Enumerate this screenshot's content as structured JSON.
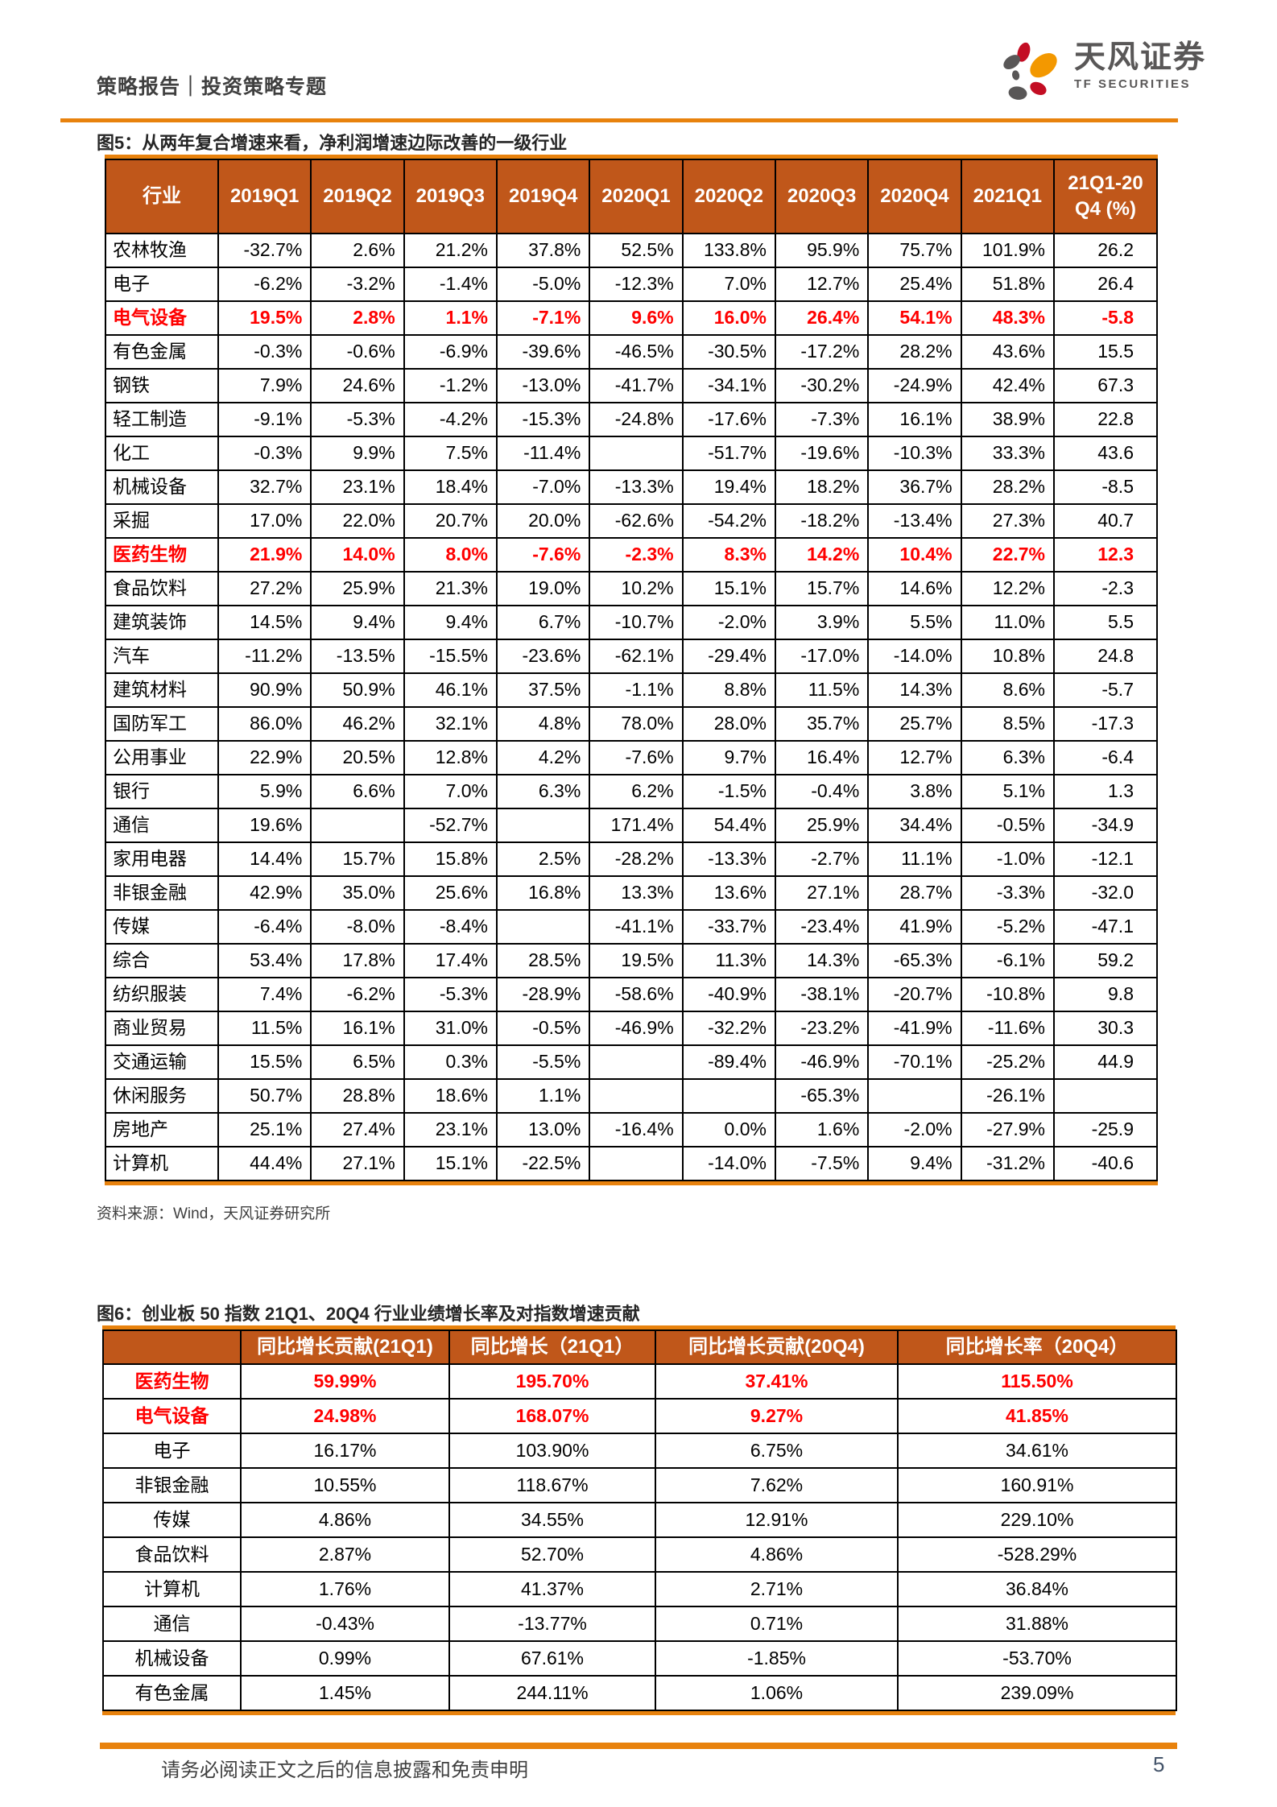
{
  "header": {
    "breadcrumb": "策略报告｜投资策略专题",
    "logo_cn": "天风证券",
    "logo_en": "TF SECURITIES"
  },
  "figure5": {
    "title": "图5：从两年复合增速来看，净利润增速边际改善的一级行业",
    "source": "资料来源：Wind，天风证券研究所",
    "table": {
      "columns": [
        "行业",
        "2019Q1",
        "2019Q2",
        "2019Q3",
        "2019Q4",
        "2020Q1",
        "2020Q2",
        "2020Q3",
        "2020Q4",
        "2021Q1",
        "21Q1-20Q4 (%)"
      ],
      "rows": [
        {
          "industry": "农林牧渔",
          "highlight": false,
          "values": [
            "-32.7%",
            "2.6%",
            "21.2%",
            "37.8%",
            "52.5%",
            "133.8%",
            "95.9%",
            "75.7%",
            "101.9%",
            "26.2"
          ]
        },
        {
          "industry": "电子",
          "highlight": false,
          "values": [
            "-6.2%",
            "-3.2%",
            "-1.4%",
            "-5.0%",
            "-12.3%",
            "7.0%",
            "12.7%",
            "25.4%",
            "51.8%",
            "26.4"
          ]
        },
        {
          "industry": "电气设备",
          "highlight": true,
          "values": [
            "19.5%",
            "2.8%",
            "1.1%",
            "-7.1%",
            "9.6%",
            "16.0%",
            "26.4%",
            "54.1%",
            "48.3%",
            "-5.8"
          ]
        },
        {
          "industry": "有色金属",
          "highlight": false,
          "values": [
            "-0.3%",
            "-0.6%",
            "-6.9%",
            "-39.6%",
            "-46.5%",
            "-30.5%",
            "-17.2%",
            "28.2%",
            "43.6%",
            "15.5"
          ]
        },
        {
          "industry": "钢铁",
          "highlight": false,
          "values": [
            "7.9%",
            "24.6%",
            "-1.2%",
            "-13.0%",
            "-41.7%",
            "-34.1%",
            "-30.2%",
            "-24.9%",
            "42.4%",
            "67.3"
          ]
        },
        {
          "industry": "轻工制造",
          "highlight": false,
          "values": [
            "-9.1%",
            "-5.3%",
            "-4.2%",
            "-15.3%",
            "-24.8%",
            "-17.6%",
            "-7.3%",
            "16.1%",
            "38.9%",
            "22.8"
          ]
        },
        {
          "industry": "化工",
          "highlight": false,
          "values": [
            "-0.3%",
            "9.9%",
            "7.5%",
            "-11.4%",
            "",
            "-51.7%",
            "-19.6%",
            "-10.3%",
            "33.3%",
            "43.6"
          ]
        },
        {
          "industry": "机械设备",
          "highlight": false,
          "values": [
            "32.7%",
            "23.1%",
            "18.4%",
            "-7.0%",
            "-13.3%",
            "19.4%",
            "18.2%",
            "36.7%",
            "28.2%",
            "-8.5"
          ]
        },
        {
          "industry": "采掘",
          "highlight": false,
          "values": [
            "17.0%",
            "22.0%",
            "20.7%",
            "20.0%",
            "-62.6%",
            "-54.2%",
            "-18.2%",
            "-13.4%",
            "27.3%",
            "40.7"
          ]
        },
        {
          "industry": "医药生物",
          "highlight": true,
          "values": [
            "21.9%",
            "14.0%",
            "8.0%",
            "-7.6%",
            "-2.3%",
            "8.3%",
            "14.2%",
            "10.4%",
            "22.7%",
            "12.3"
          ]
        },
        {
          "industry": "食品饮料",
          "highlight": false,
          "values": [
            "27.2%",
            "25.9%",
            "21.3%",
            "19.0%",
            "10.2%",
            "15.1%",
            "15.7%",
            "14.6%",
            "12.2%",
            "-2.3"
          ]
        },
        {
          "industry": "建筑装饰",
          "highlight": false,
          "values": [
            "14.5%",
            "9.4%",
            "9.4%",
            "6.7%",
            "-10.7%",
            "-2.0%",
            "3.9%",
            "5.5%",
            "11.0%",
            "5.5"
          ]
        },
        {
          "industry": "汽车",
          "highlight": false,
          "values": [
            "-11.2%",
            "-13.5%",
            "-15.5%",
            "-23.6%",
            "-62.1%",
            "-29.4%",
            "-17.0%",
            "-14.0%",
            "10.8%",
            "24.8"
          ]
        },
        {
          "industry": "建筑材料",
          "highlight": false,
          "values": [
            "90.9%",
            "50.9%",
            "46.1%",
            "37.5%",
            "-1.1%",
            "8.8%",
            "11.5%",
            "14.3%",
            "8.6%",
            "-5.7"
          ]
        },
        {
          "industry": "国防军工",
          "highlight": false,
          "values": [
            "86.0%",
            "46.2%",
            "32.1%",
            "4.8%",
            "78.0%",
            "28.0%",
            "35.7%",
            "25.7%",
            "8.5%",
            "-17.3"
          ]
        },
        {
          "industry": "公用事业",
          "highlight": false,
          "values": [
            "22.9%",
            "20.5%",
            "12.8%",
            "4.2%",
            "-7.6%",
            "9.7%",
            "16.4%",
            "12.7%",
            "6.3%",
            "-6.4"
          ]
        },
        {
          "industry": "银行",
          "highlight": false,
          "values": [
            "5.9%",
            "6.6%",
            "7.0%",
            "6.3%",
            "6.2%",
            "-1.5%",
            "-0.4%",
            "3.8%",
            "5.1%",
            "1.3"
          ]
        },
        {
          "industry": "通信",
          "highlight": false,
          "values": [
            "19.6%",
            "",
            "-52.7%",
            "",
            "171.4%",
            "54.4%",
            "25.9%",
            "34.4%",
            "-0.5%",
            "-34.9"
          ]
        },
        {
          "industry": "家用电器",
          "highlight": false,
          "values": [
            "14.4%",
            "15.7%",
            "15.8%",
            "2.5%",
            "-28.2%",
            "-13.3%",
            "-2.7%",
            "11.1%",
            "-1.0%",
            "-12.1"
          ]
        },
        {
          "industry": "非银金融",
          "highlight": false,
          "values": [
            "42.9%",
            "35.0%",
            "25.6%",
            "16.8%",
            "13.3%",
            "13.6%",
            "27.1%",
            "28.7%",
            "-3.3%",
            "-32.0"
          ]
        },
        {
          "industry": "传媒",
          "highlight": false,
          "values": [
            "-6.4%",
            "-8.0%",
            "-8.4%",
            "",
            "-41.1%",
            "-33.7%",
            "-23.4%",
            "41.9%",
            "-5.2%",
            "-47.1"
          ]
        },
        {
          "industry": "综合",
          "highlight": false,
          "values": [
            "53.4%",
            "17.8%",
            "17.4%",
            "28.5%",
            "19.5%",
            "11.3%",
            "14.3%",
            "-65.3%",
            "-6.1%",
            "59.2"
          ]
        },
        {
          "industry": "纺织服装",
          "highlight": false,
          "values": [
            "7.4%",
            "-6.2%",
            "-5.3%",
            "-28.9%",
            "-58.6%",
            "-40.9%",
            "-38.1%",
            "-20.7%",
            "-10.8%",
            "9.8"
          ]
        },
        {
          "industry": "商业贸易",
          "highlight": false,
          "values": [
            "11.5%",
            "16.1%",
            "31.0%",
            "-0.5%",
            "-46.9%",
            "-32.2%",
            "-23.2%",
            "-41.9%",
            "-11.6%",
            "30.3"
          ]
        },
        {
          "industry": "交通运输",
          "highlight": false,
          "values": [
            "15.5%",
            "6.5%",
            "0.3%",
            "-5.5%",
            "",
            "-89.4%",
            "-46.9%",
            "-70.1%",
            "-25.2%",
            "44.9"
          ]
        },
        {
          "industry": "休闲服务",
          "highlight": false,
          "values": [
            "50.7%",
            "28.8%",
            "18.6%",
            "1.1%",
            "",
            "",
            "-65.3%",
            "",
            "-26.1%",
            ""
          ]
        },
        {
          "industry": "房地产",
          "highlight": false,
          "values": [
            "25.1%",
            "27.4%",
            "23.1%",
            "13.0%",
            "-16.4%",
            "0.0%",
            "1.6%",
            "-2.0%",
            "-27.9%",
            "-25.9"
          ]
        },
        {
          "industry": "计算机",
          "highlight": false,
          "values": [
            "44.4%",
            "27.1%",
            "15.1%",
            "-22.5%",
            "",
            "-14.0%",
            "-7.5%",
            "9.4%",
            "-31.2%",
            "-40.6"
          ]
        }
      ]
    }
  },
  "figure6": {
    "title": "图6：创业板 50 指数 21Q1、20Q4 行业业绩增长率及对指数增速贡献",
    "table": {
      "columns": [
        "",
        "同比增长贡献(21Q1)",
        "同比增长（21Q1）",
        "同比增长贡献(20Q4)",
        "同比增长率（20Q4）"
      ],
      "rows": [
        {
          "industry": "医药生物",
          "highlight": true,
          "values": [
            "59.99%",
            "195.70%",
            "37.41%",
            "115.50%"
          ]
        },
        {
          "industry": "电气设备",
          "highlight": true,
          "values": [
            "24.98%",
            "168.07%",
            "9.27%",
            "41.85%"
          ]
        },
        {
          "industry": "电子",
          "highlight": false,
          "values": [
            "16.17%",
            "103.90%",
            "6.75%",
            "34.61%"
          ]
        },
        {
          "industry": "非银金融",
          "highlight": false,
          "values": [
            "10.55%",
            "118.67%",
            "7.62%",
            "160.91%"
          ]
        },
        {
          "industry": "传媒",
          "highlight": false,
          "values": [
            "4.86%",
            "34.55%",
            "12.91%",
            "229.10%"
          ]
        },
        {
          "industry": "食品饮料",
          "highlight": false,
          "values": [
            "2.87%",
            "52.70%",
            "4.86%",
            "-528.29%"
          ]
        },
        {
          "industry": "计算机",
          "highlight": false,
          "values": [
            "1.76%",
            "41.37%",
            "2.71%",
            "36.84%"
          ]
        },
        {
          "industry": "通信",
          "highlight": false,
          "values": [
            "-0.43%",
            "-13.77%",
            "0.71%",
            "31.88%"
          ]
        },
        {
          "industry": "机械设备",
          "highlight": false,
          "values": [
            "0.99%",
            "67.61%",
            "-1.85%",
            "-53.70%"
          ]
        },
        {
          "industry": "有色金属",
          "highlight": false,
          "values": [
            "1.45%",
            "244.11%",
            "1.06%",
            "239.09%"
          ]
        }
      ]
    }
  },
  "footer": {
    "disclaimer": "请务必阅读正文之后的信息披露和免责申明",
    "page_number": "5"
  },
  "colors": {
    "accent_orange": "#E8820D",
    "table_header_orange": "#C0571A",
    "highlight_red": "#FF0000",
    "logo_gray": "#595757",
    "logo_crimson": "#C30D23",
    "logo_orange": "#F39800"
  }
}
